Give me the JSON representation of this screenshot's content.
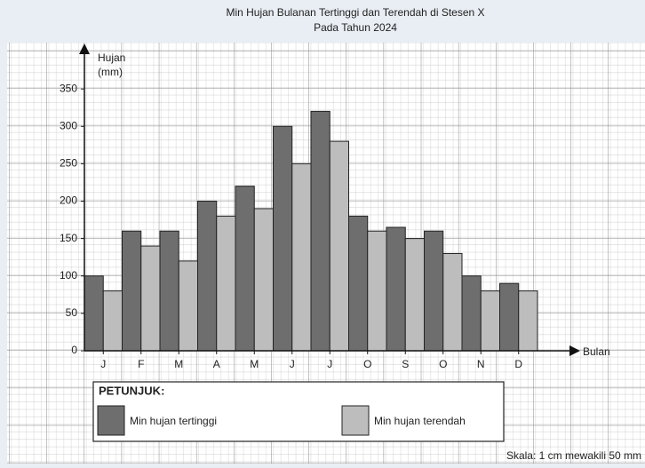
{
  "chart_data": {
    "type": "bar",
    "title": "Min Hujan Bulanan Tertinggi dan Terendah di Stesen X",
    "subtitle": "Pada Tahun 2024",
    "ylabel": "Hujan",
    "ylabel_unit": "(mm)",
    "xlabel": "Bulan",
    "categories": [
      "J",
      "F",
      "M",
      "A",
      "M",
      "J",
      "J",
      "O",
      "S",
      "O",
      "N",
      "D"
    ],
    "series": [
      {
        "name": "Min hujan tertinggi",
        "color": "#6e6e6e",
        "values": [
          100,
          160,
          160,
          200,
          220,
          300,
          320,
          180,
          165,
          160,
          100,
          90
        ]
      },
      {
        "name": "Min hujan terendah",
        "color": "#bdbdbd",
        "values": [
          80,
          140,
          120,
          180,
          190,
          250,
          280,
          160,
          150,
          130,
          80,
          80
        ]
      }
    ],
    "ylim": [
      0,
      400
    ],
    "yticks": [
      0,
      50,
      100,
      150,
      200,
      250,
      300,
      350
    ],
    "legend_title": "PETUNJUK:",
    "note": "Skala: 1 cm mewakili 50 mm"
  }
}
